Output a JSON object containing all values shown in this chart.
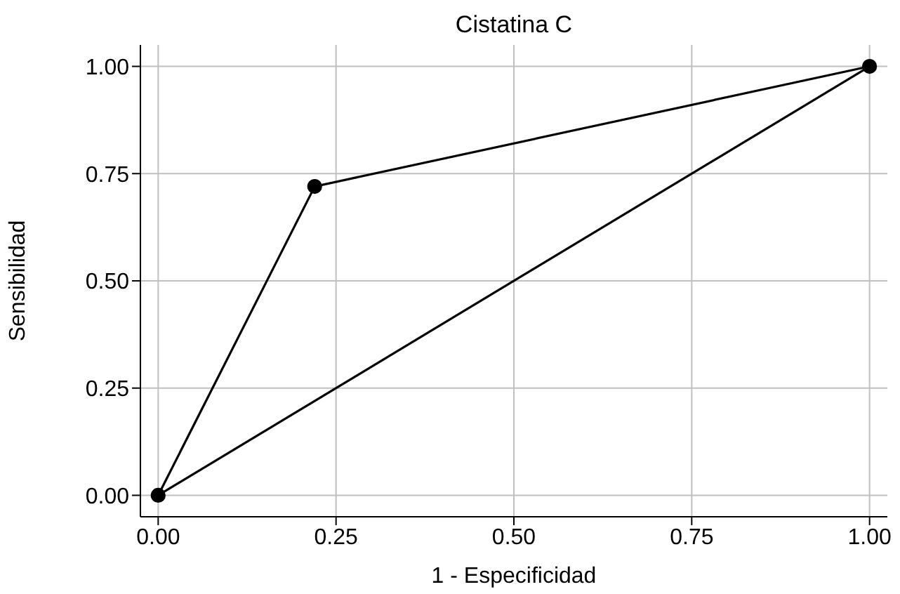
{
  "chart_data": {
    "type": "line",
    "title": "Cistatina C",
    "xlabel": "1 - Especificidad",
    "ylabel": "Sensibilidad",
    "series": [
      {
        "x": [
          0,
          0.22,
          1
        ],
        "values": [
          0,
          0.72,
          1
        ],
        "color": "#000000",
        "marker": "circle"
      },
      {
        "x": [
          0,
          1
        ],
        "values": [
          0,
          1
        ],
        "color": "#000000",
        "marker": "none"
      }
    ],
    "xlim": [
      -0.025,
      1.025
    ],
    "ylim": [
      -0.05,
      1.05
    ],
    "xticks": [
      {
        "value": 0,
        "label": "0.00"
      },
      {
        "value": 0.25,
        "label": "0.25"
      },
      {
        "value": 0.5,
        "label": "0.50"
      },
      {
        "value": 0.75,
        "label": "0.75"
      },
      {
        "value": 1,
        "label": "1.00"
      }
    ],
    "yticks": [
      {
        "value": 0,
        "label": "0.00"
      },
      {
        "value": 0.25,
        "label": "0.25"
      },
      {
        "value": 0.5,
        "label": "0.50"
      },
      {
        "value": 0.75,
        "label": "0.75"
      },
      {
        "value": 1,
        "label": "1.00"
      }
    ],
    "grid": true,
    "line_style": "solid"
  }
}
